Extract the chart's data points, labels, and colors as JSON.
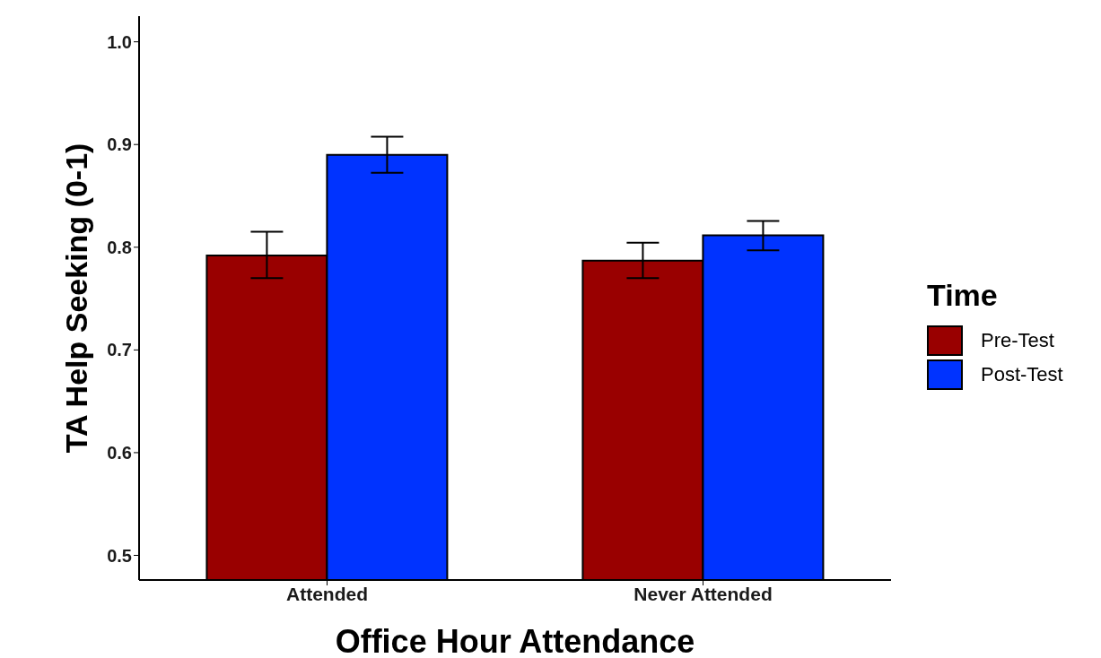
{
  "chart_data": {
    "type": "bar",
    "xlabel": "Office Hour Attendance",
    "ylabel": "TA Help Seeking (0-1)",
    "legend_title": "Time",
    "categories": [
      "Attended",
      "Never Attended"
    ],
    "series": [
      {
        "name": "Pre-Test",
        "color": "#990000",
        "values": [
          0.792,
          0.787
        ],
        "errors": [
          [
            0.77,
            0.815
          ],
          [
            0.77,
            0.8045
          ]
        ]
      },
      {
        "name": "Post-Test",
        "color": "#0033ff",
        "values": [
          0.89,
          0.8115
        ],
        "errors": [
          [
            0.8725,
            0.9075
          ],
          [
            0.797,
            0.8255
          ]
        ]
      }
    ],
    "ylim": [
      0.476,
      1.025
    ],
    "yticks": [
      {
        "value": 0.5,
        "label": "0.5"
      },
      {
        "value": 0.6,
        "label": "0.6"
      },
      {
        "value": 0.7,
        "label": "0.7"
      },
      {
        "value": 0.8,
        "label": "0.8"
      },
      {
        "value": 0.9,
        "label": "0.9"
      },
      {
        "value": 1,
        "label": "1.0"
      }
    ],
    "grid": false,
    "legend": "right"
  }
}
